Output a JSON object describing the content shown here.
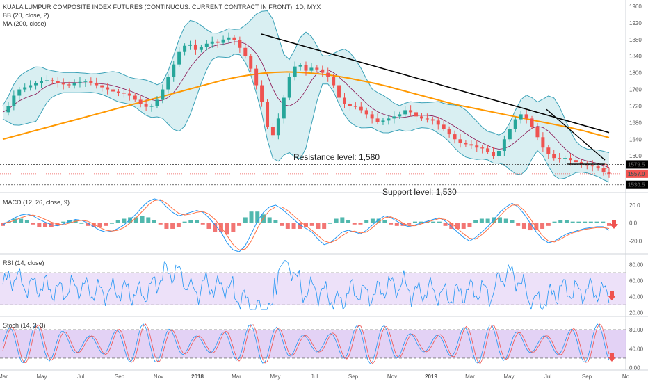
{
  "chart_data": [
    {
      "type": "candlestick",
      "title": "KUALA LUMPUR COMPOSITE INDEX FUTURES (CONTINUOUS: CURRENT CONTRACT IN FRONT), 1D, MYX",
      "indicators": [
        "BB (20, close, 2)",
        "MA (200, close)"
      ],
      "yticks": [
        1600,
        1640,
        1680,
        1720,
        1760,
        1800,
        1840,
        1880,
        1920,
        1960
      ],
      "ylim": [
        1520,
        1975
      ],
      "price_labels": [
        {
          "value": 1579.5,
          "label": "1579.5",
          "color": "#000000",
          "text_color": "#ffffff"
        },
        {
          "value": 1557.0,
          "label": "1557.0",
          "color": "#ef5350",
          "text_color": "#ffffff"
        },
        {
          "value": 1530.5,
          "label": "1530.5",
          "color": "#000000",
          "text_color": "#ffffff"
        }
      ],
      "annotations": [
        {
          "text": "Resistance level: 1,580",
          "at_level": 1580
        },
        {
          "text": "Support level: 1,530",
          "at_level": 1530
        }
      ],
      "close_series": [
        1705,
        1720,
        1745,
        1760,
        1765,
        1770,
        1775,
        1780,
        1782,
        1780,
        1775,
        1772,
        1770,
        1775,
        1778,
        1780,
        1776,
        1770,
        1765,
        1760,
        1755,
        1752,
        1750,
        1745,
        1735,
        1725,
        1718,
        1720,
        1735,
        1760,
        1790,
        1820,
        1850,
        1865,
        1868,
        1855,
        1862,
        1870,
        1875,
        1872,
        1880,
        1885,
        1878,
        1860,
        1840,
        1810,
        1770,
        1730,
        1670,
        1650,
        1690,
        1740,
        1790,
        1815,
        1818,
        1805,
        1812,
        1808,
        1800,
        1790,
        1770,
        1740,
        1725,
        1720,
        1718,
        1710,
        1700,
        1690,
        1682,
        1685,
        1690,
        1695,
        1700,
        1710,
        1705,
        1695,
        1690,
        1688,
        1685,
        1675,
        1665,
        1652,
        1640,
        1632,
        1628,
        1625,
        1620,
        1618,
        1610,
        1600,
        1612,
        1640,
        1665,
        1688,
        1700,
        1690,
        1670,
        1645,
        1620,
        1605,
        1595,
        1592,
        1595,
        1590,
        1585,
        1580,
        1578,
        1575,
        1570,
        1560,
        1557
      ],
      "ma200": [
        1640,
        1648,
        1656,
        1664,
        1672,
        1680,
        1688,
        1696,
        1704,
        1712,
        1720,
        1728,
        1736,
        1744,
        1752,
        1760,
        1768,
        1776,
        1784,
        1790,
        1795,
        1799,
        1801,
        1802,
        1801,
        1799,
        1796,
        1792,
        1787,
        1781,
        1775,
        1768,
        1760,
        1752,
        1744,
        1736,
        1728,
        1721,
        1715,
        1709,
        1703,
        1697,
        1691,
        1685,
        1679,
        1673,
        1667,
        1660,
        1652,
        1644
      ]
    },
    {
      "type": "line",
      "title": "MACD (12, 26, close, 9)",
      "yticks": [
        20.0,
        0.0,
        -20.0
      ],
      "ylim": [
        -32,
        30
      ],
      "macd": [
        -2,
        2,
        6,
        9,
        10,
        8,
        4,
        1,
        -2,
        -3,
        -1,
        2,
        4,
        3,
        0,
        -4,
        -8,
        -10,
        -9,
        -6,
        -2,
        4,
        10,
        18,
        24,
        27,
        25,
        18,
        12,
        8,
        10,
        12,
        14,
        12,
        6,
        -2,
        -10,
        -22,
        -30,
        -32,
        -25,
        -12,
        2,
        12,
        18,
        20,
        16,
        10,
        4,
        -2,
        -6,
        -10,
        -18,
        -24,
        -22,
        -16,
        -10,
        -8,
        -10,
        -12,
        -8,
        -2,
        4,
        8,
        6,
        2,
        -2,
        -4,
        -2,
        0,
        2,
        4,
        6,
        2,
        -4,
        -10,
        -16,
        -20,
        -16,
        -10,
        -4,
        4,
        12,
        18,
        22,
        18,
        10,
        0,
        -10,
        -18,
        -22,
        -20,
        -16,
        -12,
        -10,
        -8,
        -6,
        -5,
        -4,
        -4,
        -8
      ],
      "signal": [
        0,
        1,
        3,
        6,
        8,
        9,
        7,
        4,
        1,
        -1,
        -2,
        0,
        2,
        3,
        2,
        -1,
        -5,
        -8,
        -9,
        -8,
        -5,
        0,
        6,
        13,
        20,
        25,
        26,
        22,
        16,
        11,
        9,
        10,
        12,
        13,
        10,
        4,
        -4,
        -14,
        -24,
        -30,
        -29,
        -20,
        -6,
        6,
        14,
        18,
        18,
        14,
        8,
        2,
        -3,
        -8,
        -14,
        -20,
        -22,
        -19,
        -14,
        -10,
        -9,
        -11,
        -10,
        -5,
        1,
        6,
        7,
        4,
        0,
        -3,
        -3,
        -1,
        1,
        3,
        5,
        4,
        0,
        -6,
        -12,
        -17,
        -18,
        -13,
        -7,
        0,
        8,
        15,
        20,
        20,
        14,
        5,
        -5,
        -14,
        -20,
        -21,
        -18,
        -14,
        -11,
        -9,
        -7,
        -6,
        -5,
        -5,
        -6
      ]
    },
    {
      "type": "line",
      "title": "RSI (14, close)",
      "yticks": [
        80.0,
        60.0,
        40.0,
        20.0
      ],
      "ylim": [
        18,
        90
      ],
      "band": [
        30,
        70
      ]
    },
    {
      "type": "line",
      "title": "Stoch (14, 3, 3)",
      "yticks": [
        80.0,
        40.0,
        0.0
      ],
      "ylim": [
        -5,
        102
      ],
      "band": [
        20,
        80
      ]
    }
  ],
  "x_axis": {
    "tick_labels": [
      "Mar",
      "May",
      "Jul",
      "Sep",
      "Nov",
      "2018",
      "Mar",
      "May",
      "Jul",
      "Sep",
      "Nov",
      "2019",
      "Mar",
      "May",
      "Jul",
      "Sep",
      "No"
    ]
  },
  "colors": {
    "bull": "#26a69a",
    "bear": "#ef5350",
    "bb": "#3aa1b7",
    "bb_fill": "#bfe5ea",
    "ma200": "#ff9800",
    "basis": "#880e4f",
    "macd": "#2196f3",
    "signal": "#ff7043",
    "rsi": "#2196f3",
    "rsi_band": "#e8d9f7",
    "stoch_k": "#2196f3",
    "stoch_d": "#ef5350",
    "stoch_band": "#dcc7f2"
  }
}
